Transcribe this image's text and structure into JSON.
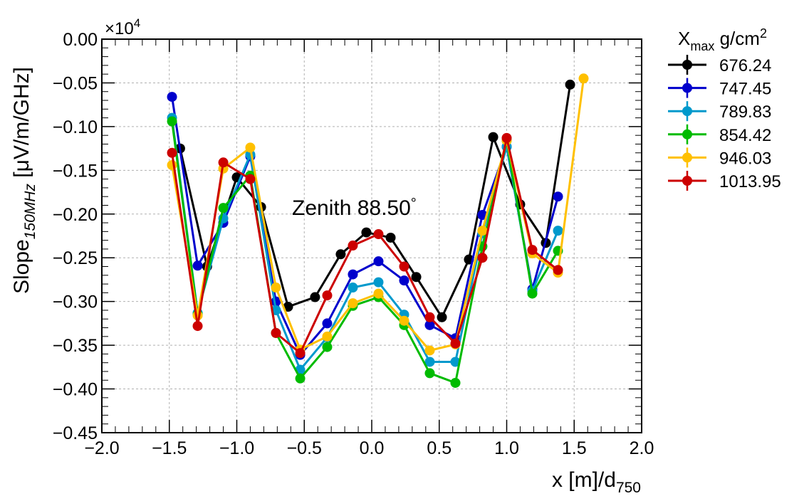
{
  "chart_data": {
    "type": "line",
    "annotation": "Zenith 88.50",
    "annotation_unit": "°",
    "ylabel": "Slope",
    "ylabel_sub": "150MHz",
    "ylabel_unit": " [μV/m/GHz]",
    "xlabel": "x [m]/d",
    "xlabel_sub": "750",
    "multiplier_base": "×10",
    "multiplier_exp": "4",
    "legend_title": "X",
    "legend_title_sub": "max",
    "legend_title_unit": " g/cm",
    "legend_title_sup": "2",
    "xlim": [
      -2.0,
      2.0
    ],
    "ylim": [
      -0.45,
      0.0
    ],
    "xticks": [
      "−2.0",
      "−1.5",
      "−1.0",
      "−0.5",
      "0.0",
      "0.5",
      "1.0",
      "1.5",
      "2.0"
    ],
    "yticks": [
      "0.00",
      "−0.05",
      "−0.10",
      "−0.15",
      "−0.20",
      "−0.25",
      "−0.30",
      "−0.35",
      "−0.40",
      "−0.45"
    ],
    "grid": true,
    "legend_position": "outside-right",
    "series": [
      {
        "name": "676.24",
        "color": "#000000",
        "x": [
          -1.42,
          -1.22,
          -1.0,
          -0.82,
          -0.62,
          -0.42,
          -0.23,
          -0.04,
          0.14,
          0.33,
          0.52,
          0.72,
          0.9,
          1.1,
          1.29,
          1.47
        ],
        "y": [
          -0.125,
          -0.26,
          -0.158,
          -0.192,
          -0.306,
          -0.295,
          -0.246,
          -0.221,
          -0.227,
          -0.272,
          -0.318,
          -0.252,
          -0.112,
          -0.189,
          -0.233,
          -0.052
        ]
      },
      {
        "name": "747.45",
        "color": "#0000cc",
        "x": [
          -1.48,
          -1.29,
          -1.1,
          -0.9,
          -0.71,
          -0.53,
          -0.33,
          -0.14,
          0.05,
          0.24,
          0.43,
          0.62,
          0.82,
          1.0,
          1.19,
          1.38
        ],
        "y": [
          -0.066,
          -0.259,
          -0.21,
          -0.134,
          -0.3,
          -0.361,
          -0.325,
          -0.269,
          -0.254,
          -0.276,
          -0.327,
          -0.342,
          -0.201,
          -0.123,
          -0.286,
          -0.18
        ]
      },
      {
        "name": "789.83",
        "color": "#0099cc",
        "x": [
          -1.48,
          -1.29,
          -1.1,
          -0.9,
          -0.71,
          -0.53,
          -0.33,
          -0.14,
          0.05,
          0.24,
          0.43,
          0.62,
          0.82,
          1.0,
          1.19,
          1.38
        ],
        "y": [
          -0.09,
          -0.313,
          -0.205,
          -0.132,
          -0.31,
          -0.378,
          -0.341,
          -0.284,
          -0.278,
          -0.315,
          -0.369,
          -0.369,
          -0.222,
          -0.123,
          -0.288,
          -0.219
        ]
      },
      {
        "name": "854.42",
        "color": "#00bb00",
        "x": [
          -1.48,
          -1.29,
          -1.1,
          -0.9,
          -0.71,
          -0.53,
          -0.33,
          -0.14,
          0.05,
          0.24,
          0.43,
          0.62,
          0.82,
          1.0,
          1.19,
          1.38
        ],
        "y": [
          -0.094,
          -0.315,
          -0.193,
          -0.156,
          -0.336,
          -0.388,
          -0.352,
          -0.305,
          -0.295,
          -0.327,
          -0.382,
          -0.393,
          -0.237,
          -0.116,
          -0.291,
          -0.242
        ]
      },
      {
        "name": "946.03",
        "color": "#ffc000",
        "x": [
          -1.48,
          -1.29,
          -1.1,
          -0.9,
          -0.71,
          -0.53,
          -0.33,
          -0.14,
          0.05,
          0.24,
          0.43,
          0.62,
          0.82,
          1.0,
          1.19,
          1.38,
          1.57
        ],
        "y": [
          -0.144,
          -0.316,
          -0.148,
          -0.124,
          -0.284,
          -0.355,
          -0.34,
          -0.302,
          -0.291,
          -0.322,
          -0.356,
          -0.349,
          -0.219,
          -0.116,
          -0.245,
          -0.267,
          -0.045
        ]
      },
      {
        "name": "1013.95",
        "color": "#cc0000",
        "x": [
          -1.48,
          -1.29,
          -1.1,
          -0.9,
          -0.71,
          -0.53,
          -0.33,
          -0.14,
          0.05,
          0.24,
          0.43,
          0.62,
          0.82,
          1.0,
          1.19,
          1.38
        ],
        "y": [
          -0.13,
          -0.328,
          -0.141,
          -0.16,
          -0.336,
          -0.359,
          -0.293,
          -0.236,
          -0.223,
          -0.26,
          -0.318,
          -0.348,
          -0.25,
          -0.113,
          -0.241,
          -0.264
        ]
      }
    ]
  }
}
